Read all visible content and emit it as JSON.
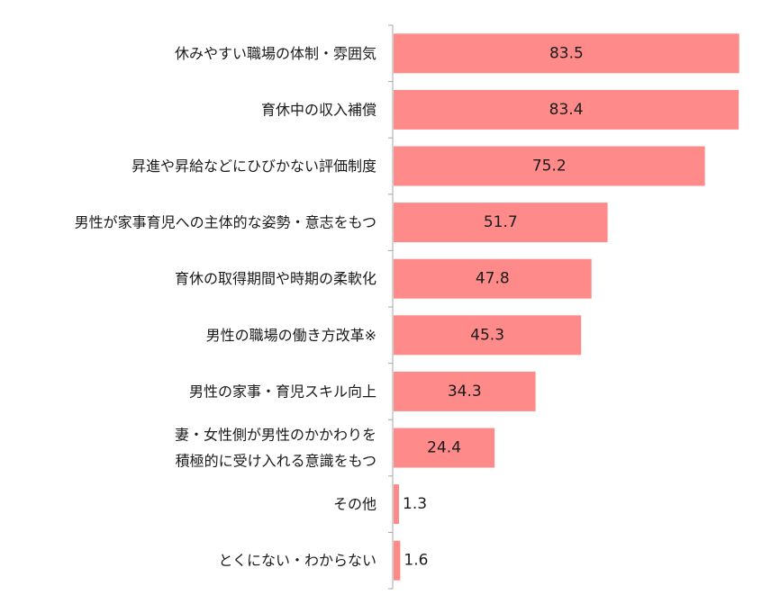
{
  "chart_data": {
    "type": "bar",
    "orientation": "horizontal",
    "categories": [
      [
        "休みやすい職場の体制・雰囲気"
      ],
      [
        "育休中の収入補償"
      ],
      [
        "昇進や昇給などにひびかない評価制度"
      ],
      [
        "男性が家事育児への主体的な姿勢・意志をもつ"
      ],
      [
        "育休の取得期間や時期の柔軟化"
      ],
      [
        "男性の職場の働き方改革※"
      ],
      [
        "男性の家事・育児スキル向上"
      ],
      [
        "妻・女性側が男性のかかわりを",
        "積極的に受け入れる意識をもつ"
      ],
      [
        "その他"
      ],
      [
        "とくにない・わからない"
      ]
    ],
    "values": [
      83.5,
      83.4,
      75.2,
      51.7,
      47.8,
      45.3,
      34.3,
      24.4,
      1.3,
      1.6
    ],
    "value_labels": [
      "83.5",
      "83.4",
      "75.2",
      "51.7",
      "47.8",
      "45.3",
      "34.3",
      "24.4",
      "1.3",
      "1.6"
    ],
    "xlim": [
      0,
      84
    ],
    "bar_color": "#ff8a8a",
    "axis_color": "#a6a6a6",
    "label_color": "#1a1a1a",
    "grid": false,
    "legend": "none"
  }
}
